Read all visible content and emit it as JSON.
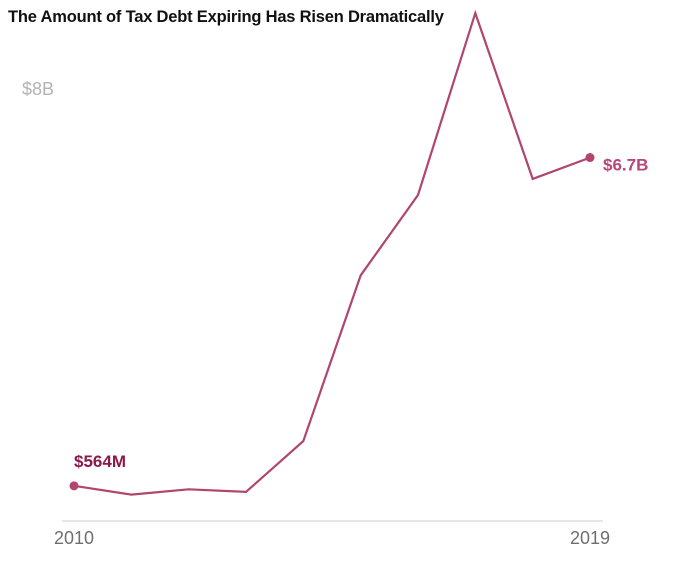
{
  "chart_data": {
    "type": "line",
    "title": "The Amount of Tax Debt Expiring Has Risen Dramatically",
    "xlabel": "",
    "ylabel": "",
    "x": [
      2010,
      2011,
      2012,
      2013,
      2014,
      2015,
      2016,
      2017,
      2018,
      2019
    ],
    "series": [
      {
        "name": "Tax debt expiring",
        "values": [
          0.564,
          0.4,
          0.5,
          0.45,
          1.4,
          4.5,
          6.0,
          9.4,
          6.3,
          6.7
        ]
      }
    ],
    "ylim": [
      0,
      8
    ],
    "y_tick_labels": [
      {
        "value": 8,
        "label": "$8B"
      }
    ],
    "x_tick_labels": [
      {
        "value": 2010,
        "label": "2010"
      },
      {
        "value": 2019,
        "label": "2019"
      }
    ],
    "annotations": [
      {
        "x": 2010,
        "y": 0.564,
        "label": "$564M",
        "color": "#8b1a4a"
      },
      {
        "x": 2019,
        "y": 6.7,
        "label": "$6.7B",
        "color": "#b9467a"
      }
    ],
    "grid": false,
    "legend": "none",
    "colors": {
      "line": "#b0456f",
      "axis": "#cccccc",
      "y_tick": "#b3b3b3",
      "x_tick": "#6f6f6f"
    }
  }
}
